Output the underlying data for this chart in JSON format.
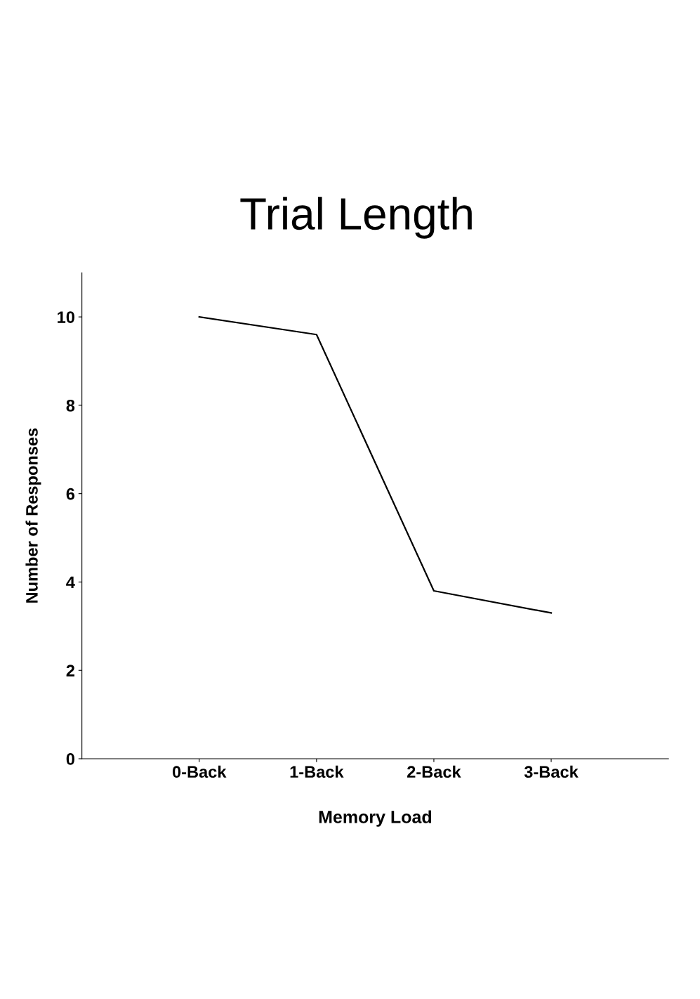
{
  "chart_data": {
    "type": "line",
    "title": "Trial Length",
    "xlabel": "Memory Load",
    "ylabel": "Number of Responses",
    "categories": [
      "0-Back",
      "1-Back",
      "2-Back",
      "3-Back"
    ],
    "series": [
      {
        "color": "#000000",
        "values": [
          10.0,
          9.6,
          3.8,
          3.3
        ]
      }
    ],
    "ylim": [
      0,
      11
    ],
    "yticks": [
      0,
      2,
      4,
      6,
      8,
      10
    ],
    "grid": false,
    "legend": false
  }
}
